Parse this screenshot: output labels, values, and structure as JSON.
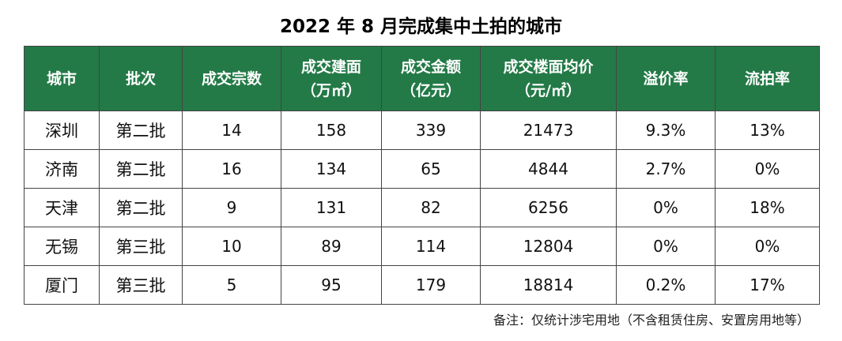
{
  "title": "2022 年 8 月完成集中土拍的城市",
  "table": {
    "headers": {
      "city": "城市",
      "batch": "批次",
      "deals": "成交宗数",
      "area_line1": "成交建面",
      "area_line2": "（万㎡）",
      "amount_line1": "成交金额",
      "amount_line2": "（亿元）",
      "price_line1": "成交楼面均价",
      "price_line2": "（元/㎡）",
      "premium": "溢价率",
      "failed": "流拍率"
    },
    "rows": [
      {
        "city": "深圳",
        "batch": "第二批",
        "deals": "14",
        "area": "158",
        "amount": "339",
        "price": "21473",
        "premium": "9.3%",
        "failed": "13%"
      },
      {
        "city": "济南",
        "batch": "第二批",
        "deals": "16",
        "area": "134",
        "amount": "65",
        "price": "4844",
        "premium": "2.7%",
        "failed": "0%"
      },
      {
        "city": "天津",
        "batch": "第二批",
        "deals": "9",
        "area": "131",
        "amount": "82",
        "price": "6256",
        "premium": "0%",
        "failed": "18%"
      },
      {
        "city": "无锡",
        "batch": "第三批",
        "deals": "10",
        "area": "89",
        "amount": "114",
        "price": "12804",
        "premium": "0%",
        "failed": "0%"
      },
      {
        "city": "厦门",
        "batch": "第三批",
        "deals": "5",
        "area": "95",
        "amount": "179",
        "price": "18814",
        "premium": "0.2%",
        "failed": "17%"
      }
    ]
  },
  "note": "备注：仅统计涉宅用地（不含租赁住房、安置房用地等）",
  "colors": {
    "header_bg": "#237a47",
    "header_text": "#ffffff",
    "border": "#444444"
  }
}
